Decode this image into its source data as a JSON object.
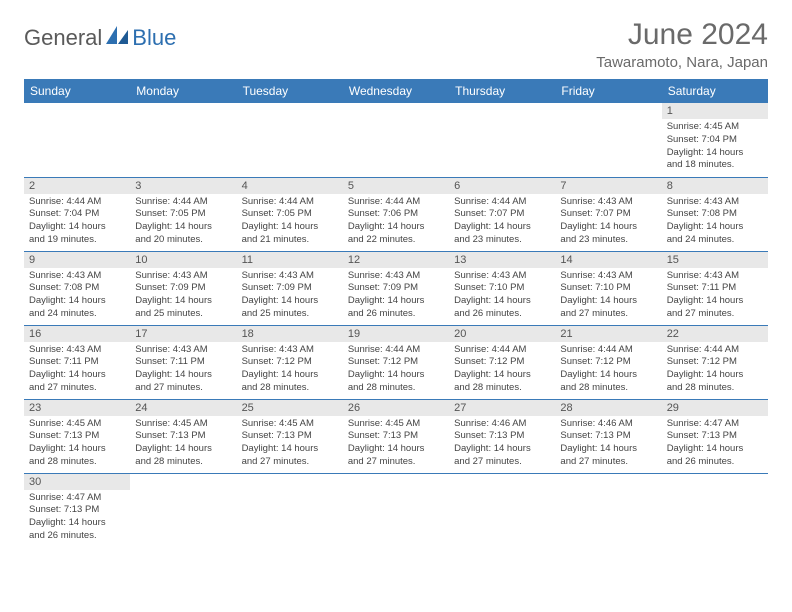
{
  "brand": {
    "name_left": "General",
    "name_right": "Blue"
  },
  "title": "June 2024",
  "location": "Tawaramoto, Nara, Japan",
  "colors": {
    "header_bg": "#3a7ab8",
    "header_text": "#ffffff",
    "daynum_bg": "#e8e8e8",
    "border": "#3a7ab8",
    "logo_gray": "#5a5a5a",
    "logo_blue": "#2d6fb0"
  },
  "weekdays": [
    "Sunday",
    "Monday",
    "Tuesday",
    "Wednesday",
    "Thursday",
    "Friday",
    "Saturday"
  ],
  "weeks": [
    [
      null,
      null,
      null,
      null,
      null,
      null,
      {
        "d": "1",
        "sr": "Sunrise: 4:45 AM",
        "ss": "Sunset: 7:04 PM",
        "dl1": "Daylight: 14 hours",
        "dl2": "and 18 minutes."
      }
    ],
    [
      {
        "d": "2",
        "sr": "Sunrise: 4:44 AM",
        "ss": "Sunset: 7:04 PM",
        "dl1": "Daylight: 14 hours",
        "dl2": "and 19 minutes."
      },
      {
        "d": "3",
        "sr": "Sunrise: 4:44 AM",
        "ss": "Sunset: 7:05 PM",
        "dl1": "Daylight: 14 hours",
        "dl2": "and 20 minutes."
      },
      {
        "d": "4",
        "sr": "Sunrise: 4:44 AM",
        "ss": "Sunset: 7:05 PM",
        "dl1": "Daylight: 14 hours",
        "dl2": "and 21 minutes."
      },
      {
        "d": "5",
        "sr": "Sunrise: 4:44 AM",
        "ss": "Sunset: 7:06 PM",
        "dl1": "Daylight: 14 hours",
        "dl2": "and 22 minutes."
      },
      {
        "d": "6",
        "sr": "Sunrise: 4:44 AM",
        "ss": "Sunset: 7:07 PM",
        "dl1": "Daylight: 14 hours",
        "dl2": "and 23 minutes."
      },
      {
        "d": "7",
        "sr": "Sunrise: 4:43 AM",
        "ss": "Sunset: 7:07 PM",
        "dl1": "Daylight: 14 hours",
        "dl2": "and 23 minutes."
      },
      {
        "d": "8",
        "sr": "Sunrise: 4:43 AM",
        "ss": "Sunset: 7:08 PM",
        "dl1": "Daylight: 14 hours",
        "dl2": "and 24 minutes."
      }
    ],
    [
      {
        "d": "9",
        "sr": "Sunrise: 4:43 AM",
        "ss": "Sunset: 7:08 PM",
        "dl1": "Daylight: 14 hours",
        "dl2": "and 24 minutes."
      },
      {
        "d": "10",
        "sr": "Sunrise: 4:43 AM",
        "ss": "Sunset: 7:09 PM",
        "dl1": "Daylight: 14 hours",
        "dl2": "and 25 minutes."
      },
      {
        "d": "11",
        "sr": "Sunrise: 4:43 AM",
        "ss": "Sunset: 7:09 PM",
        "dl1": "Daylight: 14 hours",
        "dl2": "and 25 minutes."
      },
      {
        "d": "12",
        "sr": "Sunrise: 4:43 AM",
        "ss": "Sunset: 7:09 PM",
        "dl1": "Daylight: 14 hours",
        "dl2": "and 26 minutes."
      },
      {
        "d": "13",
        "sr": "Sunrise: 4:43 AM",
        "ss": "Sunset: 7:10 PM",
        "dl1": "Daylight: 14 hours",
        "dl2": "and 26 minutes."
      },
      {
        "d": "14",
        "sr": "Sunrise: 4:43 AM",
        "ss": "Sunset: 7:10 PM",
        "dl1": "Daylight: 14 hours",
        "dl2": "and 27 minutes."
      },
      {
        "d": "15",
        "sr": "Sunrise: 4:43 AM",
        "ss": "Sunset: 7:11 PM",
        "dl1": "Daylight: 14 hours",
        "dl2": "and 27 minutes."
      }
    ],
    [
      {
        "d": "16",
        "sr": "Sunrise: 4:43 AM",
        "ss": "Sunset: 7:11 PM",
        "dl1": "Daylight: 14 hours",
        "dl2": "and 27 minutes."
      },
      {
        "d": "17",
        "sr": "Sunrise: 4:43 AM",
        "ss": "Sunset: 7:11 PM",
        "dl1": "Daylight: 14 hours",
        "dl2": "and 27 minutes."
      },
      {
        "d": "18",
        "sr": "Sunrise: 4:43 AM",
        "ss": "Sunset: 7:12 PM",
        "dl1": "Daylight: 14 hours",
        "dl2": "and 28 minutes."
      },
      {
        "d": "19",
        "sr": "Sunrise: 4:44 AM",
        "ss": "Sunset: 7:12 PM",
        "dl1": "Daylight: 14 hours",
        "dl2": "and 28 minutes."
      },
      {
        "d": "20",
        "sr": "Sunrise: 4:44 AM",
        "ss": "Sunset: 7:12 PM",
        "dl1": "Daylight: 14 hours",
        "dl2": "and 28 minutes."
      },
      {
        "d": "21",
        "sr": "Sunrise: 4:44 AM",
        "ss": "Sunset: 7:12 PM",
        "dl1": "Daylight: 14 hours",
        "dl2": "and 28 minutes."
      },
      {
        "d": "22",
        "sr": "Sunrise: 4:44 AM",
        "ss": "Sunset: 7:12 PM",
        "dl1": "Daylight: 14 hours",
        "dl2": "and 28 minutes."
      }
    ],
    [
      {
        "d": "23",
        "sr": "Sunrise: 4:45 AM",
        "ss": "Sunset: 7:13 PM",
        "dl1": "Daylight: 14 hours",
        "dl2": "and 28 minutes."
      },
      {
        "d": "24",
        "sr": "Sunrise: 4:45 AM",
        "ss": "Sunset: 7:13 PM",
        "dl1": "Daylight: 14 hours",
        "dl2": "and 28 minutes."
      },
      {
        "d": "25",
        "sr": "Sunrise: 4:45 AM",
        "ss": "Sunset: 7:13 PM",
        "dl1": "Daylight: 14 hours",
        "dl2": "and 27 minutes."
      },
      {
        "d": "26",
        "sr": "Sunrise: 4:45 AM",
        "ss": "Sunset: 7:13 PM",
        "dl1": "Daylight: 14 hours",
        "dl2": "and 27 minutes."
      },
      {
        "d": "27",
        "sr": "Sunrise: 4:46 AM",
        "ss": "Sunset: 7:13 PM",
        "dl1": "Daylight: 14 hours",
        "dl2": "and 27 minutes."
      },
      {
        "d": "28",
        "sr": "Sunrise: 4:46 AM",
        "ss": "Sunset: 7:13 PM",
        "dl1": "Daylight: 14 hours",
        "dl2": "and 27 minutes."
      },
      {
        "d": "29",
        "sr": "Sunrise: 4:47 AM",
        "ss": "Sunset: 7:13 PM",
        "dl1": "Daylight: 14 hours",
        "dl2": "and 26 minutes."
      }
    ],
    [
      {
        "d": "30",
        "sr": "Sunrise: 4:47 AM",
        "ss": "Sunset: 7:13 PM",
        "dl1": "Daylight: 14 hours",
        "dl2": "and 26 minutes."
      },
      null,
      null,
      null,
      null,
      null,
      null
    ]
  ]
}
